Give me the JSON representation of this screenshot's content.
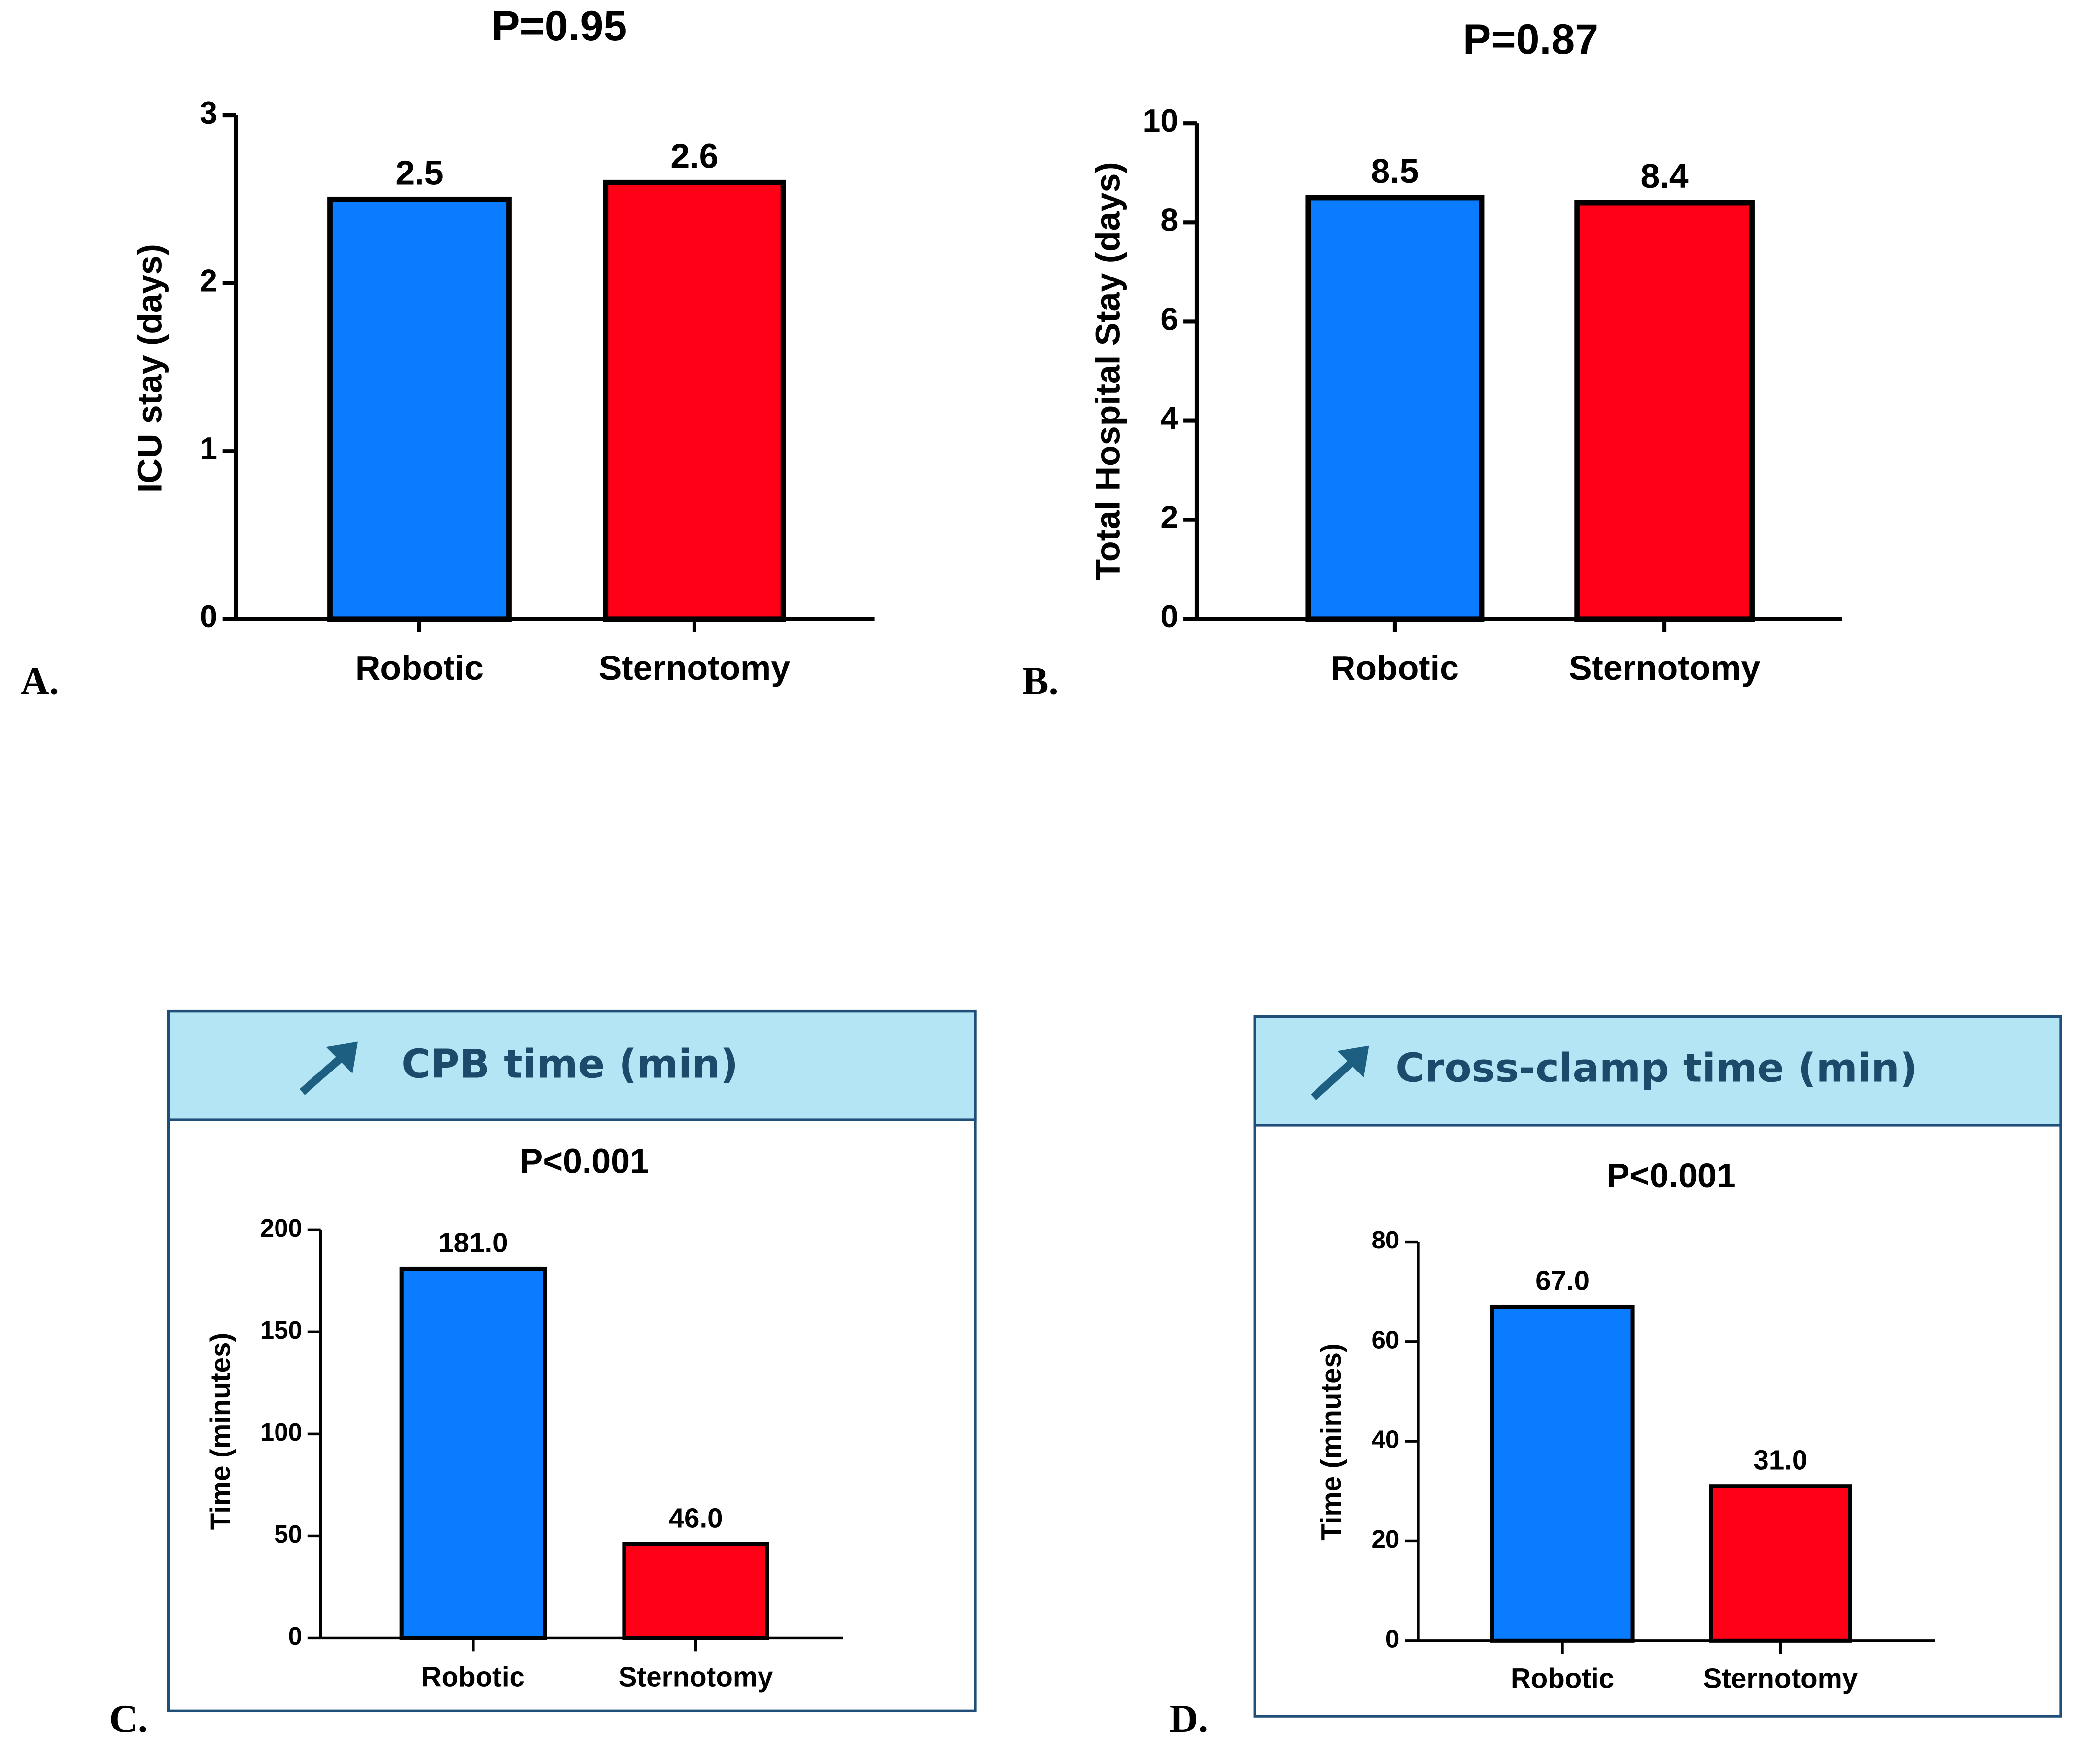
{
  "chart_data": [
    {
      "type": "bar",
      "panel_label": "A.",
      "title": "P=0.95",
      "ylabel": "ICU stay (days)",
      "categories": [
        "Robotic",
        "Sternotomy"
      ],
      "values": [
        2.5,
        2.6
      ],
      "colors": [
        "#0a7cff",
        "#ff0016"
      ],
      "ylim": [
        0,
        3
      ],
      "yticks": [
        0,
        1,
        2,
        3
      ]
    },
    {
      "type": "bar",
      "panel_label": "B.",
      "title": "P=0.87",
      "ylabel": "Total Hospital Stay (days)",
      "categories": [
        "Robotic",
        "Sternotomy"
      ],
      "values": [
        8.5,
        8.4
      ],
      "colors": [
        "#0a7cff",
        "#ff0016"
      ],
      "ylim": [
        0,
        10
      ],
      "yticks": [
        0,
        2,
        4,
        6,
        8,
        10
      ]
    },
    {
      "type": "bar",
      "panel_label": "C.",
      "header": "CPB time (min)",
      "title": "P<0.001",
      "ylabel": "Time (minutes)",
      "categories": [
        "Robotic",
        "Sternotomy"
      ],
      "values": [
        181,
        46
      ],
      "value_labels": [
        "181.0",
        "46.0"
      ],
      "colors": [
        "#0a7cff",
        "#ff0016"
      ],
      "ylim": [
        0,
        200
      ],
      "yticks": [
        0,
        50,
        100,
        150,
        200
      ]
    },
    {
      "type": "bar",
      "panel_label": "D.",
      "header": "Cross-clamp time (min)",
      "title": "P<0.001",
      "ylabel": "Time (minutes)",
      "categories": [
        "Robotic",
        "Sternotomy"
      ],
      "values": [
        67,
        31
      ],
      "value_labels": [
        "67.0",
        "31.0"
      ],
      "colors": [
        "#0a7cff",
        "#ff0016"
      ],
      "ylim": [
        0,
        80
      ],
      "yticks": [
        0,
        20,
        40,
        60,
        80
      ]
    }
  ]
}
